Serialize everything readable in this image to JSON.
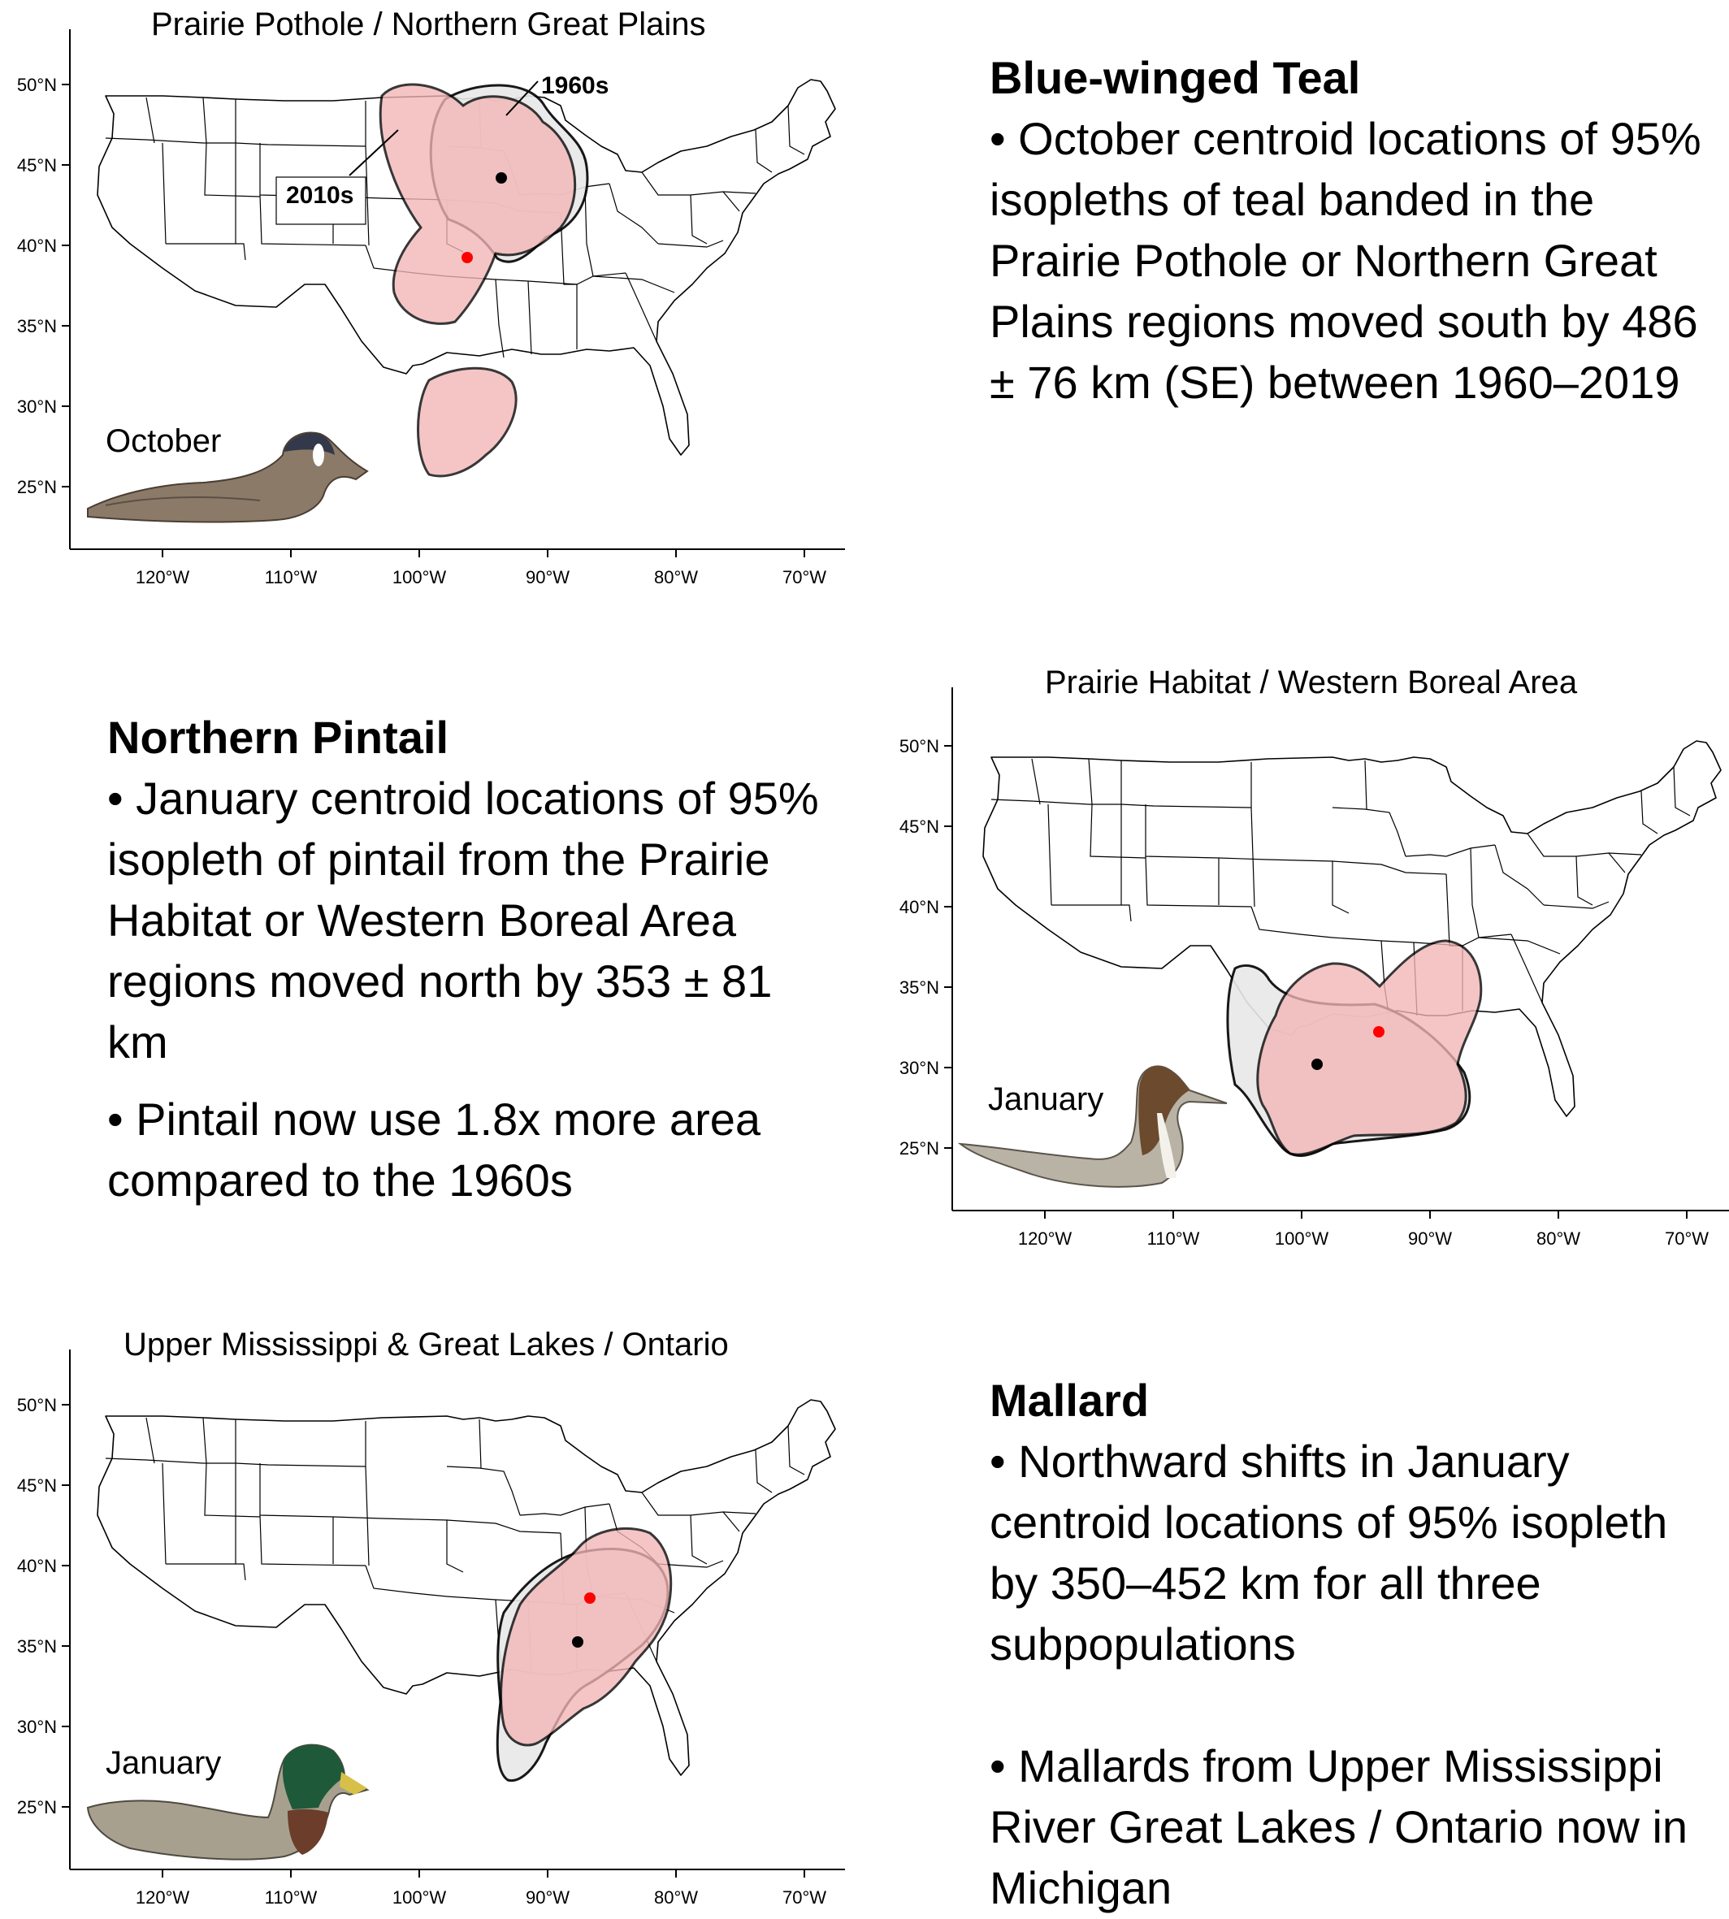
{
  "panels": [
    {
      "title": "Prairie Pothole / Northern Great Plains",
      "month": "October",
      "callouts": {
        "old": "1960s",
        "new": "2010s"
      }
    },
    {
      "title": "Prairie Habitat / Western Boreal Area",
      "month": "January"
    },
    {
      "title": "Upper Mississippi & Great Lakes / Ontario",
      "month": "January"
    }
  ],
  "axis": {
    "lat_labels": [
      "50°N",
      "45°N",
      "40°N",
      "35°N",
      "30°N",
      "25°N"
    ],
    "lon_labels": [
      "120°W",
      "110°W",
      "100°W",
      "90°W",
      "80°W",
      "70°W"
    ]
  },
  "texts": {
    "teal": {
      "head": "Blue-winged Teal",
      "bullet1": "• October centroid locations of 95% isopleths of teal banded in the Prairie Pothole or Northern Great Plains regions moved south by 486 ± 76 km (SE) between 1960–2019"
    },
    "pintail": {
      "head": "Northern Pintail",
      "bullet1": "• January centroid locations of 95% isopleth of pintail from the Prairie Habitat or Western Boreal Area regions moved north by 353 ± 81 km",
      "bullet2": "• Pintail now use 1.8x more area compared to the 1960s"
    },
    "mallard": {
      "head": "Mallard",
      "bullet1": "• Northward shifts in January centroid locations of 95% isopleth by 350–452 km for all three subpopulations",
      "bullet2": "• Mallards from Upper Mississippi River Great Lakes / Ontario now in Michigan"
    }
  },
  "legend_colors": {
    "1960s": "#e8e8e8",
    "2010s": "#f3b5b5",
    "centroid_1960s": "#000000",
    "centroid_2010s": "#ff0000"
  },
  "icons": [
    "blue-winged-teal-image",
    "northern-pintail-image",
    "mallard-image"
  ]
}
